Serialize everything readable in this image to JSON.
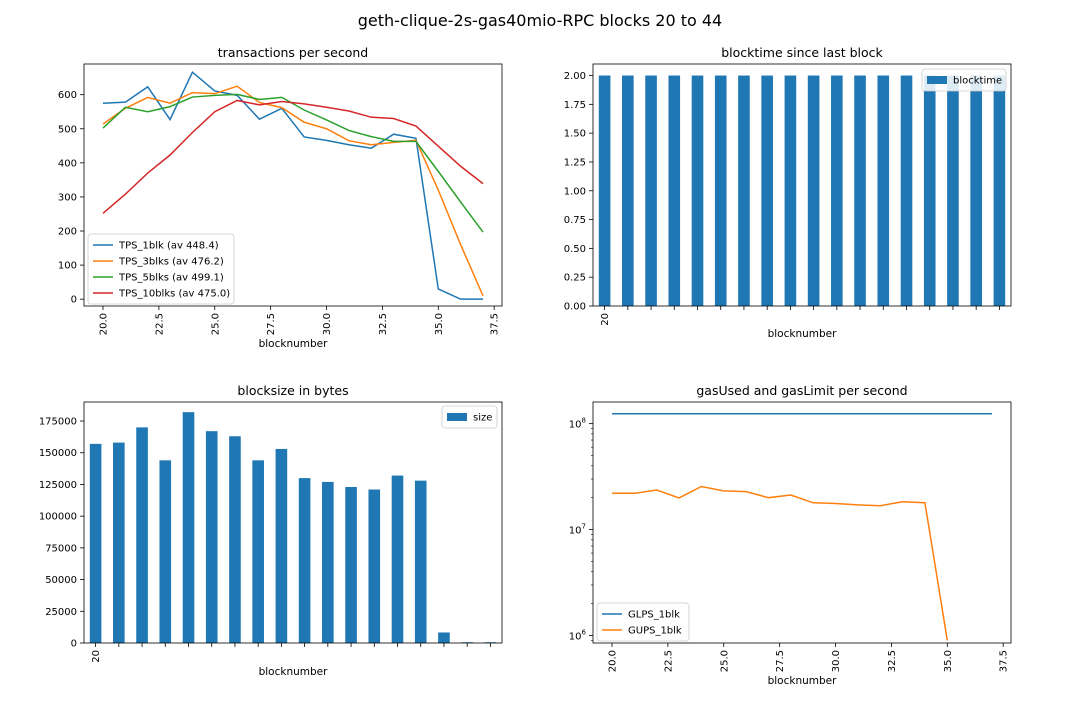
{
  "figure_title": "geth-clique-2s-gas40mio-RPC blocks 20 to 44",
  "chart_data": [
    {
      "type": "line",
      "title": "transactions per second",
      "xlabel": "blocknumber",
      "ylabel": "",
      "xlim": [
        19.15,
        37.85
      ],
      "ylim": [
        -20,
        690
      ],
      "xticks": [
        20.0,
        22.5,
        25.0,
        27.5,
        30.0,
        32.5,
        35.0,
        37.5
      ],
      "xtick_labels": [
        "20.0",
        "22.5",
        "25.0",
        "27.5",
        "30.0",
        "32.5",
        "35.0",
        "37.5"
      ],
      "yticks": [
        0,
        100,
        200,
        300,
        400,
        500,
        600
      ],
      "ytick_labels": [
        "0",
        "100",
        "200",
        "300",
        "400",
        "500",
        "600"
      ],
      "legend_position": "lower-left",
      "x": [
        20,
        21,
        22,
        23,
        24,
        25,
        26,
        27,
        28,
        29,
        30,
        31,
        32,
        33,
        34,
        35,
        36,
        37
      ],
      "series": [
        {
          "name": "TPS_1blk (av 448.4)",
          "color": "#1f77b4",
          "values": [
            575,
            578,
            623,
            527,
            666,
            611,
            598,
            528,
            560,
            476,
            466,
            453,
            443,
            484,
            472,
            30,
            0,
            0
          ]
        },
        {
          "name": "TPS_3blks (av 476.2)",
          "color": "#ff7f0e",
          "values": [
            514,
            560,
            592,
            575,
            606,
            603,
            625,
            577,
            562,
            519,
            500,
            465,
            453,
            460,
            466,
            320,
            160,
            10
          ]
        },
        {
          "name": "TPS_5blks (av 499.1)",
          "color": "#2ca02c",
          "values": [
            502,
            563,
            550,
            565,
            593,
            598,
            601,
            586,
            592,
            555,
            526,
            495,
            477,
            463,
            463,
            375,
            285,
            197
          ]
        },
        {
          "name": "TPS_10blks (av 475.0)",
          "color": "#d62728",
          "values": [
            252,
            308,
            370,
            423,
            489,
            550,
            583,
            570,
            580,
            573,
            563,
            552,
            534,
            530,
            508,
            449,
            390,
            339
          ]
        }
      ]
    },
    {
      "type": "bar",
      "title": "blocktime since last block",
      "xlabel": "blocknumber",
      "ylabel": "",
      "ylim": [
        0,
        2.1
      ],
      "yticks": [
        0.0,
        0.25,
        0.5,
        0.75,
        1.0,
        1.25,
        1.5,
        1.75,
        2.0
      ],
      "ytick_labels": [
        "0.00",
        "0.25",
        "0.50",
        "0.75",
        "1.00",
        "1.25",
        "1.50",
        "1.75",
        "2.00"
      ],
      "categories": [
        20,
        21,
        22,
        23,
        24,
        25,
        26,
        27,
        28,
        29,
        30,
        31,
        32,
        33,
        34,
        35,
        36,
        37
      ],
      "category_labels": [
        "20",
        "",
        "",
        "",
        "",
        "",
        "",
        "",
        "",
        "",
        "",
        "",
        "",
        "",
        "",
        "",
        "",
        ""
      ],
      "legend_position": "upper-right",
      "series": [
        {
          "name": "blocktime",
          "color": "#1f77b4",
          "values": [
            2,
            2,
            2,
            2,
            2,
            2,
            2,
            2,
            2,
            2,
            2,
            2,
            2,
            2,
            2,
            2,
            2,
            2
          ]
        }
      ]
    },
    {
      "type": "bar",
      "title": "blocksize in bytes",
      "xlabel": "blocknumber",
      "ylabel": "",
      "ylim": [
        0,
        190000
      ],
      "yticks": [
        0,
        25000,
        50000,
        75000,
        100000,
        125000,
        150000,
        175000
      ],
      "ytick_labels": [
        "0",
        "25000",
        "50000",
        "75000",
        "100000",
        "125000",
        "150000",
        "175000"
      ],
      "categories": [
        20,
        21,
        22,
        23,
        24,
        25,
        26,
        27,
        28,
        29,
        30,
        31,
        32,
        33,
        34,
        35,
        36,
        37
      ],
      "category_labels": [
        "20",
        "",
        "",
        "",
        "",
        "",
        "",
        "",
        "",
        "",
        "",
        "",
        "",
        "",
        "",
        "",
        "",
        ""
      ],
      "legend_position": "upper-right",
      "series": [
        {
          "name": "size",
          "color": "#1f77b4",
          "values": [
            157000,
            158000,
            170000,
            144000,
            182000,
            167000,
            163000,
            144000,
            153000,
            130000,
            127000,
            123000,
            121000,
            132000,
            128000,
            8300,
            600,
            600
          ]
        }
      ]
    },
    {
      "type": "line",
      "title": "gasUsed and gasLimit per second",
      "xlabel": "blocknumber",
      "ylabel": "",
      "yscale": "log",
      "xlim": [
        19.15,
        37.85
      ],
      "ylim": [
        850000,
        160000000
      ],
      "xticks": [
        20.0,
        22.5,
        25.0,
        27.5,
        30.0,
        32.5,
        35.0,
        37.5
      ],
      "xtick_labels": [
        "20.0",
        "22.5",
        "25.0",
        "27.5",
        "30.0",
        "32.5",
        "35.0",
        "37.5"
      ],
      "yticks_major": [
        1000000,
        10000000,
        100000000
      ],
      "ytick_labels": [
        "10^6",
        "10^7",
        "10^8"
      ],
      "legend_position": "lower-left",
      "series": [
        {
          "name": "GLPS_1blk",
          "color": "#1f77b4",
          "x": [
            20,
            37
          ],
          "values": [
            124000000,
            124000000
          ]
        },
        {
          "name": "GUPS_1blk",
          "color": "#ff7f0e",
          "x": [
            20,
            21,
            22,
            23,
            24,
            25,
            26,
            27,
            28,
            29,
            30,
            31,
            32,
            33,
            34,
            35
          ],
          "values": [
            22000000,
            22000000,
            23600000,
            19900000,
            25500000,
            23200000,
            22800000,
            20000000,
            21200000,
            17900000,
            17600000,
            17100000,
            16800000,
            18300000,
            17900000,
            900000
          ]
        }
      ]
    }
  ]
}
